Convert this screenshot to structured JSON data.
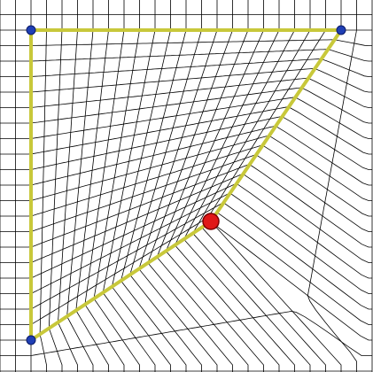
{
  "scene": {
    "background_color": "#ffffff",
    "grid_line_color": "#000000",
    "grid_cells": 20,
    "polygon_outline_color": "#c8c83a",
    "corner_handle_color": "#1f3fb5",
    "active_handle_color": "#e01818",
    "corner_handles": [
      {
        "name": "top-left-handle"
      },
      {
        "name": "top-right-handle"
      },
      {
        "name": "bottom-left-handle"
      }
    ],
    "active_handle": {
      "name": "drag-handle"
    }
  }
}
